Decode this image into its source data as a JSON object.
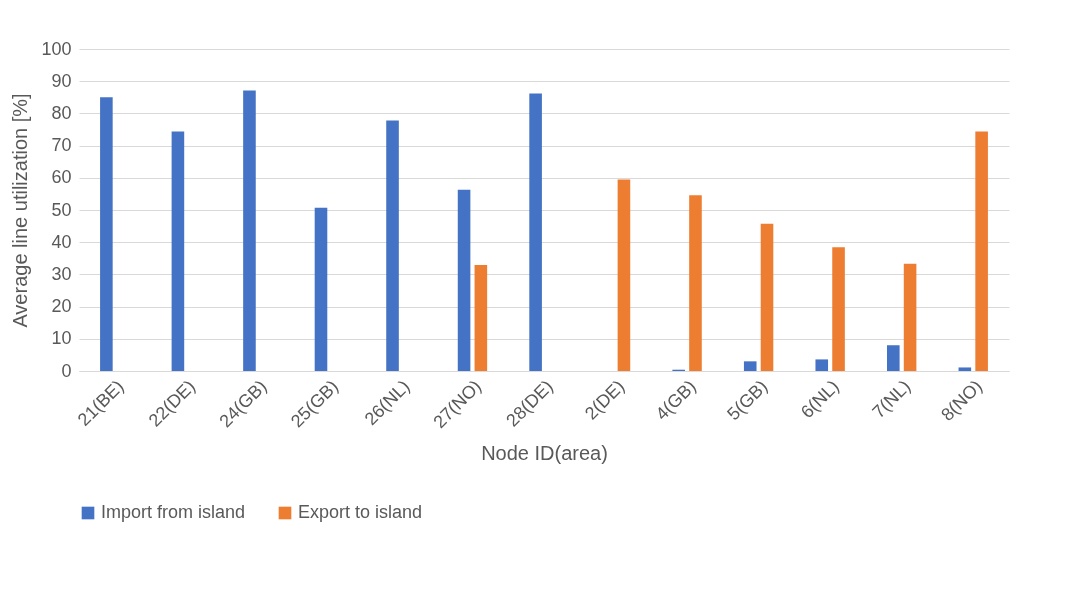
{
  "chart_data": {
    "type": "bar",
    "xlabel": "Node ID(area)",
    "ylabel": "Average line utilization [%]",
    "categories": [
      "21(BE)",
      "22(DE)",
      "24(GB)",
      "25(GB)",
      "26(NL)",
      "27(NO)",
      "28(DE)",
      "2(DE)",
      "4(GB)",
      "5(GB)",
      "6(NL)",
      "7(NL)",
      "8(NO)"
    ],
    "series": [
      {
        "name": "Import from island",
        "color": "#4472c4",
        "values": [
          85,
          74.4,
          87.1,
          50.7,
          77.8,
          56.3,
          86.2,
          0,
          0.4,
          3,
          3.6,
          8,
          1.1
        ]
      },
      {
        "name": "Export to island",
        "color": "#ed7d31",
        "values": [
          0,
          0,
          0,
          0,
          0,
          32.9,
          0,
          59.5,
          54.6,
          45.7,
          38.4,
          33.3,
          74.4
        ]
      }
    ],
    "ylim": [
      0,
      100
    ],
    "yticks": [
      0,
      10,
      20,
      30,
      40,
      50,
      60,
      70,
      80,
      90,
      100
    ],
    "grid": "y",
    "legend": "bottom"
  }
}
